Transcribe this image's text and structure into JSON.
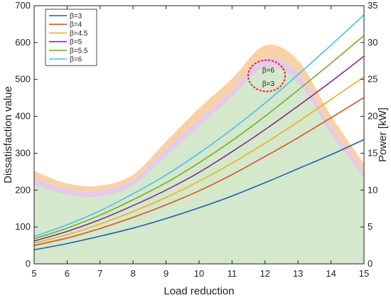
{
  "chart_data": {
    "type": "line",
    "xlabel": "Load reduction",
    "ylabel": "Dissatisfaction value",
    "y2label": "Power [kW]",
    "xlim": [
      5,
      15
    ],
    "ylim": [
      0,
      700
    ],
    "y2lim": [
      0,
      35
    ],
    "xticks": [
      5,
      6,
      7,
      8,
      9,
      10,
      11,
      12,
      13,
      14,
      15
    ],
    "yticks": [
      0,
      100,
      200,
      300,
      400,
      500,
      600,
      700
    ],
    "y2ticks": [
      0,
      5,
      10,
      15,
      20,
      25,
      30,
      35
    ],
    "grid": false,
    "legend": "top-left",
    "x": [
      5,
      6,
      7,
      8,
      9,
      10,
      11,
      12,
      13,
      14,
      15
    ],
    "series": [
      {
        "name": "β=3",
        "color": "#1f5fb0",
        "values": [
          38,
          55,
          75,
          97,
          123,
          152,
          184,
          220,
          258,
          296,
          337
        ]
      },
      {
        "name": "β=4",
        "color": "#d9541e",
        "values": [
          50,
          70,
          96,
          126,
          160,
          198,
          242,
          291,
          342,
          396,
          451
        ]
      },
      {
        "name": "β=4.5",
        "color": "#edb120",
        "values": [
          56,
          79,
          108,
          142,
          180,
          224,
          273,
          327,
          385,
          446,
          507
        ]
      },
      {
        "name": "β=5",
        "color": "#7e2f8e",
        "values": [
          62,
          88,
          120,
          158,
          200,
          248,
          304,
          364,
          428,
          494,
          563
        ]
      },
      {
        "name": "β=5.5",
        "color": "#77ac30",
        "values": [
          68,
          97,
          132,
          174,
          220,
          274,
          334,
          400,
          471,
          544,
          619
        ]
      },
      {
        "name": "β=6",
        "color": "#4dbeee",
        "values": [
          74,
          106,
          144,
          190,
          241,
          300,
          365,
          436,
          513,
          593,
          675
        ]
      }
    ],
    "power_bands": [
      {
        "color": "#f9d1a8",
        "upper": [
          12.6,
          10.9,
          10.6,
          12.1,
          16.6,
          21.1,
          25.1,
          29.6,
          27.6,
          20.1,
          13.6
        ],
        "lower": [
          11.6,
          10.1,
          9.9,
          11.4,
          15.6,
          19.6,
          23.6,
          27.9,
          25.9,
          18.6,
          12.6
        ]
      },
      {
        "color": "#e4cbe6",
        "upper": [
          11.6,
          10.1,
          9.9,
          11.4,
          15.6,
          19.6,
          23.6,
          27.9,
          25.9,
          18.6,
          12.6
        ],
        "lower": [
          10.6,
          9.4,
          9.1,
          10.6,
          14.6,
          18.6,
          22.6,
          26.6,
          24.6,
          17.6,
          11.6
        ]
      },
      {
        "color": "#d4e8cc",
        "upper": [
          10.6,
          9.4,
          9.1,
          10.6,
          14.6,
          18.6,
          22.6,
          26.6,
          24.6,
          17.6,
          11.6
        ],
        "lower": [
          0,
          0,
          0,
          0,
          0,
          0,
          0,
          0,
          0,
          0,
          0
        ]
      }
    ],
    "annotations": [
      {
        "text": "β=6",
        "x": 12.1,
        "y": 525
      },
      {
        "text": "β=3",
        "x": 12.1,
        "y": 488
      }
    ],
    "ellipse_center": [
      12.05,
      510
    ],
    "ellipse_color": "#e0243a"
  }
}
